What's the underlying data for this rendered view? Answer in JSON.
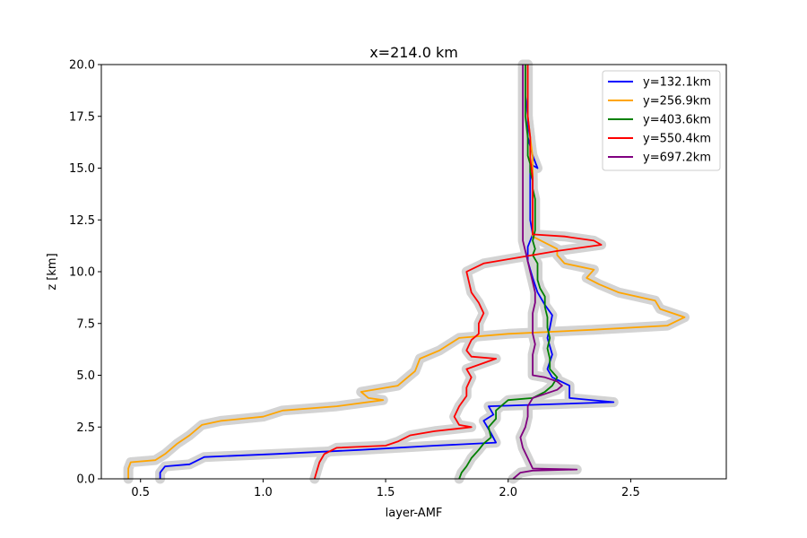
{
  "chart_data": {
    "type": "line",
    "title": "x=214.0 km",
    "xlabel": "layer-AMF",
    "ylabel": "z [km]",
    "xlim": [
      0.34,
      2.89
    ],
    "ylim": [
      0,
      20
    ],
    "xticks": [
      0.5,
      1.0,
      1.5,
      2.0,
      2.5
    ],
    "xtick_labels": [
      "0.5",
      "1.0",
      "1.5",
      "2.0",
      "2.5"
    ],
    "yticks": [
      0,
      2.5,
      5,
      7.5,
      10,
      12.5,
      15,
      17.5,
      20
    ],
    "ytick_labels": [
      "0.0",
      "2.5",
      "5.0",
      "7.5",
      "10.0",
      "12.5",
      "15.0",
      "17.5",
      "20.0"
    ],
    "grid": false,
    "legend_position": "top-right",
    "uncertainty_band_color": "#d3d3d3",
    "series": [
      {
        "name": "y=132.1km",
        "color": "#0000ff",
        "points": [
          [
            0.58,
            0
          ],
          [
            0.58,
            0.3
          ],
          [
            0.6,
            0.6
          ],
          [
            0.7,
            0.7
          ],
          [
            0.76,
            1.05
          ],
          [
            1.05,
            1.2
          ],
          [
            1.4,
            1.4
          ],
          [
            1.7,
            1.6
          ],
          [
            1.95,
            1.75
          ],
          [
            1.93,
            2.2
          ],
          [
            1.9,
            2.8
          ],
          [
            1.94,
            3.1
          ],
          [
            1.92,
            3.5
          ],
          [
            2.43,
            3.7
          ],
          [
            2.25,
            3.9
          ],
          [
            2.25,
            4.5
          ],
          [
            2.18,
            4.9
          ],
          [
            2.16,
            5.3
          ],
          [
            2.18,
            6.0
          ],
          [
            2.16,
            6.8
          ],
          [
            2.17,
            7.3
          ],
          [
            2.18,
            7.9
          ],
          [
            2.15,
            8.4
          ],
          [
            2.12,
            9.0
          ],
          [
            2.1,
            9.7
          ],
          [
            2.08,
            10.5
          ],
          [
            2.08,
            11.2
          ],
          [
            2.1,
            11.8
          ],
          [
            2.09,
            12.5
          ],
          [
            2.09,
            13.5
          ],
          [
            2.09,
            14.5
          ],
          [
            2.09,
            15.2
          ],
          [
            2.12,
            15.0
          ],
          [
            2.1,
            15.6
          ],
          [
            2.08,
            16.5
          ],
          [
            2.08,
            17.5
          ],
          [
            2.07,
            18.5
          ],
          [
            2.07,
            19.5
          ],
          [
            2.07,
            20
          ]
        ]
      },
      {
        "name": "y=256.9km",
        "color": "#ffa500",
        "points": [
          [
            0.45,
            0
          ],
          [
            0.45,
            0.5
          ],
          [
            0.46,
            0.8
          ],
          [
            0.56,
            0.9
          ],
          [
            0.6,
            1.2
          ],
          [
            0.65,
            1.7
          ],
          [
            0.7,
            2.1
          ],
          [
            0.75,
            2.6
          ],
          [
            0.83,
            2.8
          ],
          [
            1.0,
            3.0
          ],
          [
            1.08,
            3.3
          ],
          [
            1.3,
            3.5
          ],
          [
            1.49,
            3.8
          ],
          [
            1.43,
            3.9
          ],
          [
            1.4,
            4.2
          ],
          [
            1.55,
            4.5
          ],
          [
            1.58,
            4.8
          ],
          [
            1.62,
            5.2
          ],
          [
            1.64,
            5.8
          ],
          [
            1.72,
            6.2
          ],
          [
            1.8,
            6.8
          ],
          [
            2.0,
            7.0
          ],
          [
            2.35,
            7.2
          ],
          [
            2.65,
            7.4
          ],
          [
            2.72,
            7.8
          ],
          [
            2.62,
            8.2
          ],
          [
            2.6,
            8.6
          ],
          [
            2.45,
            9.0
          ],
          [
            2.37,
            9.4
          ],
          [
            2.32,
            9.7
          ],
          [
            2.35,
            10.1
          ],
          [
            2.23,
            10.4
          ],
          [
            2.2,
            10.8
          ],
          [
            2.2,
            11.1
          ],
          [
            2.15,
            11.4
          ],
          [
            2.1,
            11.7
          ],
          [
            2.1,
            12.5
          ],
          [
            2.1,
            13.5
          ],
          [
            2.1,
            14.5
          ],
          [
            2.1,
            15.5
          ],
          [
            2.09,
            16.5
          ],
          [
            2.08,
            17.5
          ],
          [
            2.08,
            18.5
          ],
          [
            2.08,
            19.5
          ],
          [
            2.08,
            20
          ]
        ]
      },
      {
        "name": "y=403.6km",
        "color": "#008000",
        "points": [
          [
            1.8,
            0
          ],
          [
            1.81,
            0.3
          ],
          [
            1.83,
            0.6
          ],
          [
            1.85,
            1.0
          ],
          [
            1.88,
            1.4
          ],
          [
            1.9,
            1.7
          ],
          [
            1.93,
            2.0
          ],
          [
            1.92,
            2.5
          ],
          [
            1.95,
            2.9
          ],
          [
            1.95,
            3.3
          ],
          [
            2.0,
            3.8
          ],
          [
            2.1,
            3.9
          ],
          [
            2.15,
            4.2
          ],
          [
            2.18,
            4.5
          ],
          [
            2.2,
            4.9
          ],
          [
            2.17,
            5.3
          ],
          [
            2.17,
            5.8
          ],
          [
            2.16,
            6.3
          ],
          [
            2.17,
            6.8
          ],
          [
            2.16,
            7.3
          ],
          [
            2.16,
            7.8
          ],
          [
            2.15,
            8.3
          ],
          [
            2.15,
            8.8
          ],
          [
            2.13,
            9.2
          ],
          [
            2.12,
            9.6
          ],
          [
            2.12,
            10.0
          ],
          [
            2.12,
            10.4
          ],
          [
            2.1,
            10.8
          ],
          [
            2.11,
            11.1
          ],
          [
            2.1,
            11.5
          ],
          [
            2.11,
            12.0
          ],
          [
            2.11,
            12.5
          ],
          [
            2.11,
            13.0
          ],
          [
            2.11,
            13.5
          ],
          [
            2.1,
            14.0
          ],
          [
            2.1,
            14.4
          ],
          [
            2.09,
            14.8
          ],
          [
            2.09,
            15.2
          ],
          [
            2.08,
            15.6
          ],
          [
            2.08,
            16.5
          ],
          [
            2.07,
            17.5
          ],
          [
            2.07,
            18.5
          ],
          [
            2.07,
            20
          ]
        ]
      },
      {
        "name": "y=550.4km",
        "color": "#ff0000",
        "points": [
          [
            1.21,
            0
          ],
          [
            1.22,
            0.4
          ],
          [
            1.23,
            0.8
          ],
          [
            1.25,
            1.2
          ],
          [
            1.3,
            1.5
          ],
          [
            1.5,
            1.6
          ],
          [
            1.55,
            1.8
          ],
          [
            1.6,
            2.1
          ],
          [
            1.7,
            2.3
          ],
          [
            1.85,
            2.5
          ],
          [
            1.8,
            2.6
          ],
          [
            1.78,
            3.0
          ],
          [
            1.8,
            3.5
          ],
          [
            1.83,
            4.0
          ],
          [
            1.83,
            4.4
          ],
          [
            1.85,
            4.9
          ],
          [
            1.83,
            5.3
          ],
          [
            1.95,
            5.8
          ],
          [
            1.85,
            5.9
          ],
          [
            1.83,
            6.2
          ],
          [
            1.85,
            6.7
          ],
          [
            1.88,
            7.0
          ],
          [
            1.88,
            7.5
          ],
          [
            1.9,
            8.0
          ],
          [
            1.88,
            8.5
          ],
          [
            1.85,
            9.0
          ],
          [
            1.84,
            9.5
          ],
          [
            1.83,
            10.0
          ],
          [
            1.9,
            10.4
          ],
          [
            2.0,
            10.6
          ],
          [
            2.1,
            10.8
          ],
          [
            2.2,
            11.0
          ],
          [
            2.38,
            11.3
          ],
          [
            2.35,
            11.5
          ],
          [
            2.23,
            11.7
          ],
          [
            2.1,
            11.8
          ],
          [
            2.1,
            12.3
          ],
          [
            2.1,
            12.8
          ],
          [
            2.1,
            13.5
          ],
          [
            2.1,
            14.5
          ],
          [
            2.09,
            15.5
          ],
          [
            2.09,
            16.5
          ],
          [
            2.08,
            17.5
          ],
          [
            2.08,
            18.5
          ],
          [
            2.08,
            20
          ]
        ]
      },
      {
        "name": "y=697.2km",
        "color": "#800080",
        "points": [
          [
            2.02,
            0
          ],
          [
            2.05,
            0.3
          ],
          [
            2.1,
            0.4
          ],
          [
            2.28,
            0.45
          ],
          [
            2.1,
            0.5
          ],
          [
            2.08,
            1.0
          ],
          [
            2.06,
            1.5
          ],
          [
            2.05,
            2.0
          ],
          [
            2.07,
            2.5
          ],
          [
            2.08,
            3.0
          ],
          [
            2.08,
            3.5
          ],
          [
            2.1,
            3.9
          ],
          [
            2.15,
            4.1
          ],
          [
            2.2,
            4.3
          ],
          [
            2.22,
            4.5
          ],
          [
            2.2,
            4.7
          ],
          [
            2.15,
            4.9
          ],
          [
            2.1,
            5.0
          ],
          [
            2.1,
            5.5
          ],
          [
            2.1,
            6.0
          ],
          [
            2.11,
            6.5
          ],
          [
            2.1,
            7.0
          ],
          [
            2.1,
            7.5
          ],
          [
            2.1,
            8.0
          ],
          [
            2.11,
            8.5
          ],
          [
            2.11,
            9.0
          ],
          [
            2.1,
            9.5
          ],
          [
            2.09,
            10.0
          ],
          [
            2.08,
            10.5
          ],
          [
            2.07,
            11.0
          ],
          [
            2.06,
            11.5
          ],
          [
            2.06,
            12.0
          ],
          [
            2.06,
            12.5
          ],
          [
            2.06,
            13.0
          ],
          [
            2.06,
            13.5
          ],
          [
            2.06,
            14.0
          ],
          [
            2.06,
            14.5
          ],
          [
            2.06,
            15.0
          ],
          [
            2.06,
            16.0
          ],
          [
            2.06,
            17.0
          ],
          [
            2.06,
            18.0
          ],
          [
            2.06,
            19.0
          ],
          [
            2.06,
            20
          ]
        ]
      }
    ]
  }
}
